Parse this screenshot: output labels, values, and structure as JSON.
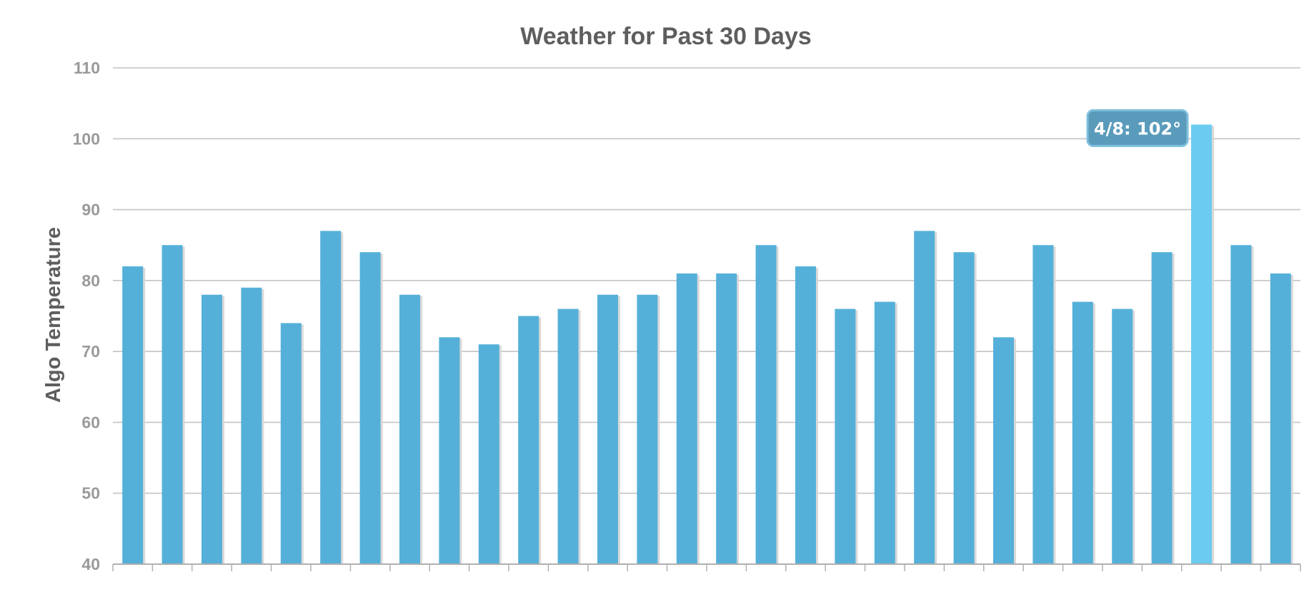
{
  "chart_data": {
    "type": "bar",
    "title": "Weather for Past 30 Days",
    "xlabel": "",
    "ylabel": "Algo Temperature",
    "ylim": [
      40,
      110
    ],
    "yticks": [
      40,
      50,
      60,
      70,
      80,
      90,
      100,
      110
    ],
    "grid": true,
    "legend": "none",
    "values": [
      82,
      85,
      78,
      79,
      74,
      87,
      84,
      78,
      72,
      71,
      75,
      76,
      78,
      78,
      81,
      81,
      85,
      82,
      76,
      77,
      87,
      84,
      72,
      85,
      77,
      76,
      84,
      102,
      85,
      81
    ],
    "highlight_index": 27,
    "tooltip": {
      "text": "4/8: 102°"
    },
    "colors": {
      "bar": "#55b0d9",
      "bar_highlight": "#6ccbf0",
      "bar_shadow": "#d9d9d9",
      "tooltip_bg": "#5a9bbb",
      "tooltip_border": "#7fc0dd"
    }
  }
}
